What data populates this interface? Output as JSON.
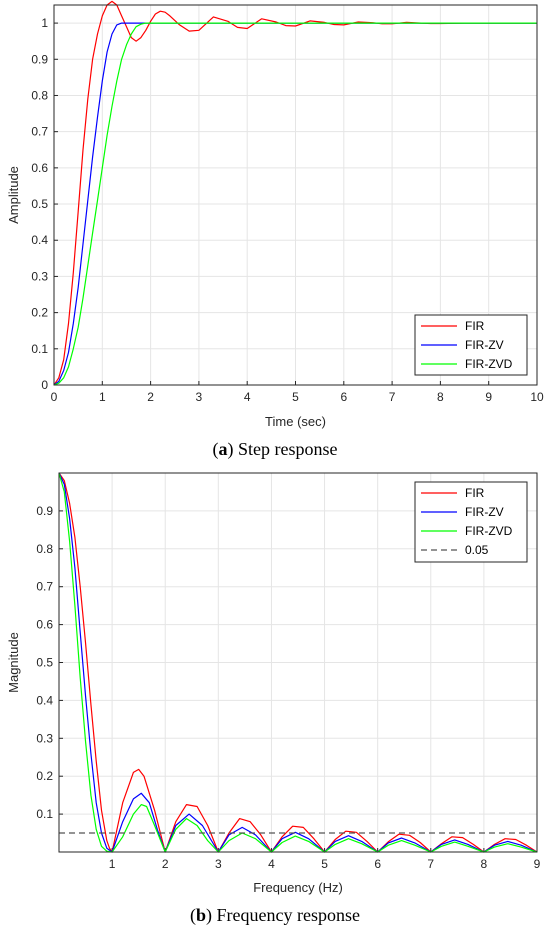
{
  "captions": [
    {
      "letter": "a",
      "text": ") Step response"
    },
    {
      "letter": "b",
      "text": ") Frequency response"
    }
  ],
  "colors": {
    "FIR": "#ff0000",
    "FIR-ZV": "#0000ff",
    "FIR-ZVD": "#00ff00",
    "threshold": "#555555",
    "grid": "#e5e5e5"
  },
  "chart_data": [
    {
      "type": "line",
      "xlabel": "Time (sec)",
      "ylabel": "Amplitude",
      "xlim": [
        0,
        10
      ],
      "ylim": [
        0,
        1.05
      ],
      "xticks": [
        "0",
        "1",
        "2",
        "3",
        "4",
        "5",
        "6",
        "7",
        "8",
        "9",
        "10"
      ],
      "yticks": [
        "0",
        "0.1",
        "0.2",
        "0.3",
        "0.4",
        "0.5",
        "0.6",
        "0.7",
        "0.8",
        "0.9",
        "1"
      ],
      "grid": true,
      "legend_position": "bottom-right",
      "series": [
        {
          "name": "FIR",
          "x": [
            0,
            0.1,
            0.2,
            0.3,
            0.4,
            0.5,
            0.6,
            0.7,
            0.8,
            0.9,
            1.0,
            1.1,
            1.2,
            1.3,
            1.4,
            1.5,
            1.6,
            1.7,
            1.8,
            1.9,
            2.0,
            2.1,
            2.2,
            2.3,
            2.4,
            2.6,
            2.8,
            3.0,
            3.3,
            3.6,
            3.8,
            4.0,
            4.3,
            4.6,
            4.8,
            5.0,
            5.3,
            5.6,
            5.8,
            6.0,
            6.3,
            6.6,
            6.8,
            7.0,
            7.3,
            7.6,
            7.8,
            8.0,
            8.5,
            9.0,
            9.5,
            10.0
          ],
          "y": [
            0,
            0.02,
            0.07,
            0.17,
            0.31,
            0.48,
            0.65,
            0.79,
            0.9,
            0.97,
            1.02,
            1.05,
            1.06,
            1.05,
            1.02,
            0.99,
            0.96,
            0.95,
            0.96,
            0.98,
            1.005,
            1.025,
            1.033,
            1.03,
            1.02,
            0.995,
            0.978,
            0.98,
            1.017,
            1.005,
            0.988,
            0.985,
            1.012,
            1.003,
            0.993,
            0.992,
            1.006,
            1.002,
            0.996,
            0.995,
            1.003,
            1.001,
            0.998,
            0.998,
            1.002,
            1.0,
            0.999,
            0.999,
            1.0,
            1.0,
            1.0,
            1.0
          ]
        },
        {
          "name": "FIR-ZV",
          "x": [
            0,
            0.1,
            0.2,
            0.3,
            0.4,
            0.5,
            0.6,
            0.7,
            0.8,
            0.9,
            1.0,
            1.1,
            1.2,
            1.3,
            1.4,
            1.5,
            2.0,
            3.0,
            5.0,
            10.0
          ],
          "y": [
            0,
            0.01,
            0.04,
            0.09,
            0.17,
            0.27,
            0.39,
            0.51,
            0.63,
            0.74,
            0.84,
            0.92,
            0.97,
            0.995,
            1.0,
            1.0,
            1.0,
            1.0,
            1.0,
            1.0
          ]
        },
        {
          "name": "FIR-ZVD",
          "x": [
            0,
            0.1,
            0.2,
            0.3,
            0.4,
            0.5,
            0.6,
            0.7,
            0.8,
            0.9,
            1.0,
            1.1,
            1.2,
            1.3,
            1.4,
            1.5,
            1.6,
            1.7,
            1.8,
            1.9,
            2.0,
            2.5,
            5.0,
            10.0
          ],
          "y": [
            0,
            0.005,
            0.02,
            0.05,
            0.1,
            0.16,
            0.24,
            0.33,
            0.42,
            0.51,
            0.6,
            0.69,
            0.77,
            0.84,
            0.9,
            0.94,
            0.97,
            0.99,
            0.997,
            1.0,
            1.0,
            1.0,
            1.0,
            1.0
          ]
        }
      ]
    },
    {
      "type": "line",
      "xlabel": "Frequency (Hz)",
      "ylabel": "Magnitude",
      "xlim": [
        0,
        9
      ],
      "ylim": [
        0,
        1
      ],
      "xticks": [
        "1",
        "2",
        "3",
        "4",
        "5",
        "6",
        "7",
        "8",
        "9"
      ],
      "yticks": [
        "0.1",
        "0.2",
        "0.3",
        "0.4",
        "0.5",
        "0.6",
        "0.7",
        "0.8",
        "0.9"
      ],
      "grid": true,
      "legend_position": "top-right",
      "series": [
        {
          "name": "FIR",
          "x": [
            0,
            0.1,
            0.2,
            0.3,
            0.4,
            0.5,
            0.6,
            0.7,
            0.8,
            0.9,
            0.95,
            1.0,
            1.2,
            1.4,
            1.5,
            1.6,
            1.8,
            2.0,
            2.2,
            2.4,
            2.6,
            2.8,
            3.0,
            3.2,
            3.4,
            3.6,
            3.8,
            4.0,
            4.2,
            4.4,
            4.6,
            4.8,
            5.0,
            5.2,
            5.4,
            5.6,
            5.8,
            6.0,
            6.2,
            6.4,
            6.6,
            6.8,
            7.0,
            7.2,
            7.4,
            7.6,
            7.8,
            8.0,
            8.2,
            8.4,
            8.6,
            8.8,
            9.0
          ],
          "y": [
            1.0,
            0.98,
            0.92,
            0.83,
            0.7,
            0.55,
            0.39,
            0.24,
            0.11,
            0.03,
            0.01,
            0.0,
            0.13,
            0.21,
            0.218,
            0.2,
            0.11,
            0.0,
            0.08,
            0.125,
            0.12,
            0.07,
            0.0,
            0.05,
            0.088,
            0.08,
            0.045,
            0.0,
            0.04,
            0.068,
            0.065,
            0.035,
            0.0,
            0.033,
            0.055,
            0.052,
            0.028,
            0.0,
            0.027,
            0.047,
            0.044,
            0.025,
            0.0,
            0.022,
            0.04,
            0.038,
            0.02,
            0.0,
            0.02,
            0.035,
            0.033,
            0.018,
            0.0
          ]
        },
        {
          "name": "FIR-ZV",
          "x": [
            0,
            0.1,
            0.2,
            0.3,
            0.4,
            0.5,
            0.6,
            0.7,
            0.8,
            0.9,
            1.0,
            1.2,
            1.4,
            1.55,
            1.7,
            1.85,
            2.0,
            2.2,
            2.45,
            2.7,
            3.0,
            3.2,
            3.45,
            3.7,
            4.0,
            4.2,
            4.45,
            4.7,
            5.0,
            5.2,
            5.45,
            5.7,
            6.0,
            6.2,
            6.45,
            6.7,
            7.0,
            7.2,
            7.45,
            7.7,
            8.0,
            8.2,
            8.45,
            8.7,
            9.0
          ],
          "y": [
            1.0,
            0.97,
            0.88,
            0.75,
            0.58,
            0.41,
            0.26,
            0.13,
            0.05,
            0.01,
            0.0,
            0.08,
            0.14,
            0.155,
            0.13,
            0.06,
            0.0,
            0.07,
            0.1,
            0.07,
            0.0,
            0.045,
            0.065,
            0.045,
            0.0,
            0.035,
            0.052,
            0.035,
            0.0,
            0.028,
            0.043,
            0.028,
            0.0,
            0.024,
            0.037,
            0.024,
            0.0,
            0.02,
            0.032,
            0.02,
            0.0,
            0.018,
            0.028,
            0.018,
            0.0
          ]
        },
        {
          "name": "FIR-ZVD",
          "x": [
            0,
            0.1,
            0.2,
            0.3,
            0.4,
            0.5,
            0.6,
            0.7,
            0.8,
            0.9,
            1.0,
            1.2,
            1.4,
            1.55,
            1.65,
            1.8,
            2.0,
            2.2,
            2.4,
            2.6,
            2.8,
            3.0,
            3.2,
            3.45,
            3.7,
            4.0,
            4.2,
            4.45,
            4.7,
            5.0,
            5.2,
            5.45,
            5.7,
            6.0,
            6.2,
            6.45,
            6.7,
            7.0,
            7.2,
            7.45,
            7.7,
            8.0,
            8.2,
            8.45,
            8.7,
            9.0
          ],
          "y": [
            1.0,
            0.95,
            0.82,
            0.65,
            0.46,
            0.29,
            0.15,
            0.06,
            0.015,
            0.002,
            0.0,
            0.04,
            0.1,
            0.125,
            0.12,
            0.07,
            0.0,
            0.06,
            0.088,
            0.07,
            0.03,
            0.0,
            0.03,
            0.05,
            0.035,
            0.0,
            0.025,
            0.042,
            0.028,
            0.0,
            0.02,
            0.035,
            0.022,
            0.0,
            0.018,
            0.03,
            0.018,
            0.0,
            0.015,
            0.026,
            0.015,
            0.0,
            0.013,
            0.022,
            0.013,
            0.0
          ]
        },
        {
          "name": "0.05",
          "x": [
            0,
            9
          ],
          "y": [
            0.05,
            0.05
          ],
          "style": "dashed"
        }
      ]
    }
  ]
}
